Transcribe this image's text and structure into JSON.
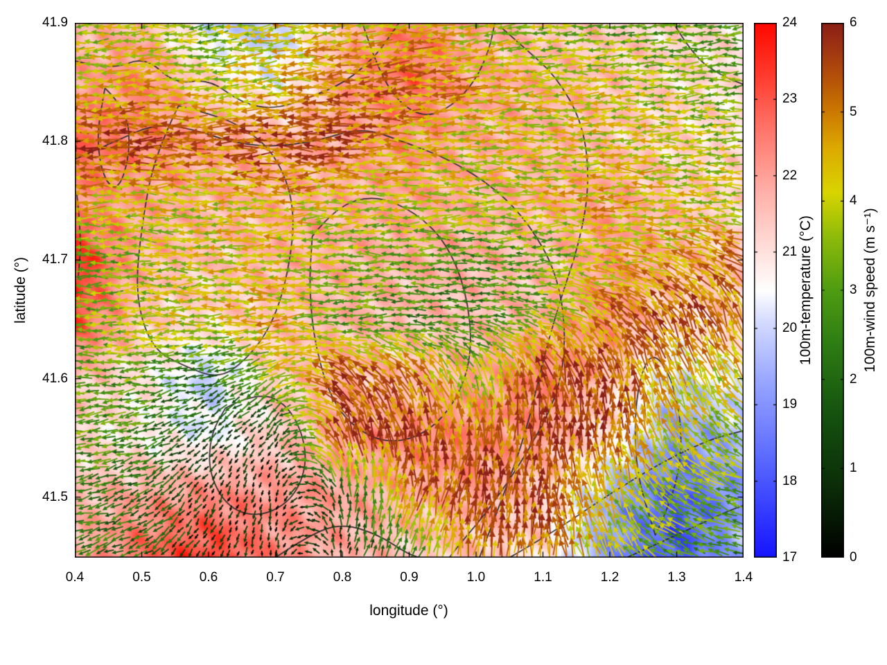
{
  "figure": {
    "xlabel": "longitude (°)",
    "ylabel": "latitude (°)",
    "xlim": [
      0.4,
      1.4
    ],
    "ylim": [
      41.449,
      41.9
    ],
    "x_ticks": [
      0.4,
      0.5,
      0.6,
      0.7,
      0.8,
      0.9,
      1.0,
      1.1,
      1.2,
      1.3,
      1.4
    ],
    "x_tick_labels": [
      "0.4",
      "0.5",
      "0.6",
      "0.7",
      "0.8",
      "0.9",
      "1.0",
      "1.1",
      "1.2",
      "1.3",
      "1.4"
    ],
    "y_ticks": [
      41.5,
      41.6,
      41.7,
      41.8,
      41.9
    ],
    "y_tick_labels": [
      "41.5",
      "41.6",
      "41.7",
      "41.8",
      "41.9"
    ]
  },
  "colorbars": [
    {
      "id": "temperature",
      "label": "100m-temperature (°C)",
      "min": 17,
      "max": 24,
      "ticks": [
        17,
        18,
        19,
        20,
        21,
        22,
        23,
        24
      ],
      "tick_labels": [
        "17",
        "18",
        "19",
        "20",
        "21",
        "22",
        "23",
        "24"
      ],
      "stops": [
        [
          17,
          "#1414ff"
        ],
        [
          18.3,
          "#5a6aff"
        ],
        [
          19.3,
          "#97a6ff"
        ],
        [
          20.1,
          "#d6dcff"
        ],
        [
          20.5,
          "#ffffff"
        ],
        [
          21.0,
          "#ffe2de"
        ],
        [
          21.8,
          "#ffb0a8"
        ],
        [
          22.6,
          "#ff766b"
        ],
        [
          23.4,
          "#ff3527"
        ],
        [
          24,
          "#ff0800"
        ]
      ]
    },
    {
      "id": "wind-speed",
      "label": "100m-wind speed (m s⁻¹)",
      "min": 0,
      "max": 6,
      "ticks": [
        0,
        1,
        2,
        3,
        4,
        5,
        6
      ],
      "tick_labels": [
        "0",
        "1",
        "2",
        "3",
        "4",
        "5",
        "6"
      ],
      "stops": [
        [
          0,
          "#000000"
        ],
        [
          0.8,
          "#0b2d08"
        ],
        [
          1.6,
          "#15520f"
        ],
        [
          2.4,
          "#2e7d14"
        ],
        [
          3.0,
          "#4f9c12"
        ],
        [
          3.6,
          "#8ebb0a"
        ],
        [
          4.1,
          "#d9d500"
        ],
        [
          4.6,
          "#ddaa00"
        ],
        [
          5.0,
          "#cc7a00"
        ],
        [
          5.4,
          "#b4500a"
        ],
        [
          5.8,
          "#9a2e14"
        ],
        [
          6,
          "#8b2016"
        ]
      ]
    }
  ],
  "chart_data": {
    "type": "heatmap",
    "subtype": "temperature-field-with-wind-quiver-and-contours",
    "title": "",
    "xlabel": "longitude (°)",
    "ylabel": "latitude (°)",
    "xlim": [
      0.4,
      1.4
    ],
    "ylim": [
      41.449,
      41.9
    ],
    "grid_lons": [
      0.4,
      0.5,
      0.6,
      0.7,
      0.8,
      0.9,
      1.0,
      1.1,
      1.2,
      1.3,
      1.4
    ],
    "grid_lats": [
      41.9,
      41.85,
      41.8,
      41.75,
      41.7,
      41.65,
      41.6,
      41.55,
      41.5,
      41.45
    ],
    "temperature_c": [
      [
        21.5,
        21.8,
        20.0,
        19.6,
        21.6,
        22.6,
        21.8,
        21.4,
        21.4,
        21.2,
        21.0
      ],
      [
        22.0,
        22.4,
        21.2,
        20.4,
        22.0,
        22.8,
        22.0,
        21.8,
        21.5,
        21.2,
        21.0
      ],
      [
        22.8,
        22.4,
        22.0,
        21.8,
        22.0,
        22.2,
        21.8,
        21.8,
        21.5,
        21.2,
        21.0
      ],
      [
        22.4,
        22.0,
        21.8,
        21.8,
        21.8,
        22.0,
        21.8,
        21.8,
        22.0,
        21.5,
        21.2
      ],
      [
        23.6,
        21.8,
        21.5,
        21.8,
        21.8,
        21.8,
        21.8,
        21.5,
        22.2,
        21.8,
        21.4
      ],
      [
        23.2,
        21.4,
        21.2,
        21.5,
        21.8,
        21.6,
        21.5,
        21.8,
        22.4,
        21.0,
        21.4
      ],
      [
        21.6,
        21.0,
        19.8,
        21.4,
        21.8,
        21.5,
        22.0,
        22.5,
        21.5,
        20.0,
        20.4
      ],
      [
        21.2,
        20.8,
        20.4,
        21.4,
        22.0,
        22.4,
        22.5,
        22.0,
        21.0,
        19.0,
        19.6
      ],
      [
        21.6,
        22.0,
        22.4,
        22.2,
        22.0,
        21.8,
        22.0,
        21.4,
        19.4,
        18.0,
        19.0
      ],
      [
        21.8,
        22.8,
        23.4,
        22.4,
        21.8,
        21.5,
        21.4,
        21.0,
        19.0,
        17.8,
        19.6
      ]
    ],
    "wind_speed_ms": [
      [
        3.5,
        4.0,
        3.0,
        4.5,
        4.0,
        4.5,
        4.0,
        3.5,
        3.0,
        3.0,
        3.0
      ],
      [
        4.0,
        4.5,
        4.0,
        4.0,
        5.0,
        5.0,
        4.5,
        4.0,
        4.0,
        3.5,
        3.0
      ],
      [
        5.5,
        5.5,
        5.0,
        5.5,
        5.5,
        4.5,
        4.0,
        4.0,
        4.0,
        4.0,
        3.5
      ],
      [
        4.5,
        4.0,
        4.0,
        4.5,
        4.0,
        4.0,
        4.0,
        4.0,
        4.5,
        4.0,
        4.0
      ],
      [
        3.0,
        3.5,
        4.0,
        4.0,
        3.5,
        3.0,
        2.5,
        3.0,
        4.0,
        4.5,
        5.0
      ],
      [
        3.0,
        4.0,
        4.0,
        4.5,
        3.0,
        2.5,
        2.5,
        3.5,
        5.0,
        5.5,
        5.0
      ],
      [
        3.0,
        3.0,
        2.0,
        3.5,
        5.5,
        5.0,
        3.5,
        5.5,
        5.5,
        4.5,
        4.0
      ],
      [
        3.0,
        2.5,
        1.0,
        0.8,
        5.5,
        5.5,
        5.0,
        5.5,
        5.5,
        4.0,
        3.5
      ],
      [
        2.5,
        2.0,
        0.8,
        0.5,
        1.5,
        5.0,
        5.5,
        5.5,
        4.0,
        3.5,
        3.0
      ],
      [
        2.5,
        2.0,
        1.0,
        0.5,
        1.0,
        2.5,
        5.0,
        5.0,
        4.0,
        3.0,
        2.5
      ]
    ],
    "wind_dir_deg": [
      [
        185,
        185,
        185,
        185,
        185,
        185,
        185,
        185,
        185,
        185,
        185
      ],
      [
        182,
        182,
        182,
        182,
        182,
        182,
        182,
        182,
        182,
        182,
        182
      ],
      [
        180,
        180,
        180,
        180,
        180,
        180,
        180,
        180,
        180,
        180,
        180
      ],
      [
        180,
        180,
        180,
        180,
        180,
        180,
        180,
        180,
        180,
        178,
        175
      ],
      [
        180,
        180,
        180,
        180,
        180,
        180,
        180,
        180,
        175,
        165,
        150
      ],
      [
        180,
        180,
        180,
        180,
        180,
        180,
        180,
        165,
        140,
        120,
        110
      ],
      [
        180,
        185,
        200,
        210,
        140,
        120,
        110,
        100,
        95,
        110,
        130
      ],
      [
        185,
        195,
        215,
        235,
        110,
        95,
        90,
        90,
        90,
        120,
        150
      ],
      [
        190,
        205,
        240,
        260,
        90,
        80,
        85,
        90,
        110,
        150,
        165
      ],
      [
        190,
        210,
        245,
        265,
        75,
        70,
        80,
        90,
        120,
        155,
        170
      ]
    ],
    "contour_color": "#2b2b2b",
    "contours_lonlat": [
      [
        [
          0.4,
          41.785
        ],
        [
          0.46,
          41.8
        ],
        [
          0.52,
          41.815
        ],
        [
          0.58,
          41.81
        ],
        [
          0.63,
          41.8
        ],
        [
          0.69,
          41.795
        ],
        [
          0.76,
          41.8
        ],
        [
          0.83,
          41.812
        ],
        [
          0.89,
          41.8
        ],
        [
          0.96,
          41.785
        ],
        [
          1.03,
          41.76
        ],
        [
          1.08,
          41.73
        ],
        [
          1.12,
          41.69
        ],
        [
          1.135,
          41.64
        ],
        [
          1.125,
          41.59
        ],
        [
          1.08,
          41.54
        ],
        [
          1.02,
          41.49
        ],
        [
          0.975,
          41.46
        ],
        [
          0.96,
          41.449
        ]
      ],
      [
        [
          0.555,
          41.83
        ],
        [
          0.52,
          41.79
        ],
        [
          0.5,
          41.73
        ],
        [
          0.49,
          41.67
        ],
        [
          0.515,
          41.625
        ],
        [
          0.565,
          41.61
        ],
        [
          0.615,
          41.6
        ],
        [
          0.655,
          41.615
        ],
        [
          0.695,
          41.645
        ],
        [
          0.72,
          41.69
        ],
        [
          0.73,
          41.745
        ],
        [
          0.7,
          41.79
        ],
        [
          0.645,
          41.815
        ],
        [
          0.59,
          41.825
        ],
        [
          0.555,
          41.83
        ]
      ],
      [
        [
          0.755,
          41.72
        ],
        [
          0.79,
          41.745
        ],
        [
          0.85,
          41.755
        ],
        [
          0.91,
          41.74
        ],
        [
          0.955,
          41.715
        ],
        [
          0.985,
          41.675
        ],
        [
          0.995,
          41.625
        ],
        [
          0.975,
          41.585
        ],
        [
          0.93,
          41.555
        ],
        [
          0.875,
          41.545
        ],
        [
          0.825,
          41.555
        ],
        [
          0.785,
          41.58
        ],
        [
          0.76,
          41.625
        ],
        [
          0.75,
          41.675
        ],
        [
          0.755,
          41.72
        ]
      ],
      [
        [
          1.005,
          41.449
        ],
        [
          1.04,
          41.5
        ],
        [
          1.075,
          41.555
        ],
        [
          1.1,
          41.615
        ],
        [
          1.125,
          41.665
        ],
        [
          1.155,
          41.715
        ],
        [
          1.17,
          41.765
        ],
        [
          1.16,
          41.815
        ],
        [
          1.12,
          41.855
        ],
        [
          1.07,
          41.88
        ],
        [
          1.04,
          41.895
        ]
      ],
      [
        [
          0.625,
          41.575
        ],
        [
          0.675,
          41.59
        ],
        [
          0.725,
          41.575
        ],
        [
          0.75,
          41.535
        ],
        [
          0.73,
          41.5
        ],
        [
          0.68,
          41.483
        ],
        [
          0.63,
          41.49
        ],
        [
          0.6,
          41.52
        ],
        [
          0.603,
          41.553
        ],
        [
          0.625,
          41.575
        ]
      ],
      [
        [
          0.445,
          41.845
        ],
        [
          0.478,
          41.827
        ],
        [
          0.483,
          41.79
        ],
        [
          0.465,
          41.758
        ],
        [
          0.443,
          41.768
        ],
        [
          0.432,
          41.803
        ],
        [
          0.445,
          41.845
        ]
      ],
      [
        [
          0.4,
          41.868
        ],
        [
          0.455,
          41.86
        ],
        [
          0.505,
          41.872
        ],
        [
          0.55,
          41.848
        ],
        [
          0.6,
          41.853
        ],
        [
          0.65,
          41.832
        ],
        [
          0.7,
          41.827
        ],
        [
          0.755,
          41.838
        ],
        [
          0.805,
          41.85
        ],
        [
          0.85,
          41.872
        ],
        [
          0.875,
          41.892
        ],
        [
          0.885,
          41.9
        ]
      ],
      [
        [
          0.83,
          41.9
        ],
        [
          0.852,
          41.862
        ],
        [
          0.885,
          41.832
        ],
        [
          0.925,
          41.82
        ],
        [
          0.965,
          41.83
        ],
        [
          1.0,
          41.852
        ],
        [
          1.02,
          41.878
        ],
        [
          1.028,
          41.9
        ]
      ],
      [
        [
          1.295,
          41.9
        ],
        [
          1.325,
          41.872
        ],
        [
          1.365,
          41.856
        ],
        [
          1.4,
          41.848
        ]
      ],
      [
        [
          1.268,
          41.468
        ],
        [
          1.298,
          41.503
        ],
        [
          1.31,
          41.553
        ],
        [
          1.292,
          41.603
        ],
        [
          1.26,
          41.625
        ],
        [
          1.238,
          41.585
        ],
        [
          1.238,
          41.523
        ],
        [
          1.268,
          41.468
        ]
      ],
      [
        [
          1.05,
          41.449
        ],
        [
          1.12,
          41.472
        ],
        [
          1.2,
          41.503
        ],
        [
          1.28,
          41.53
        ],
        [
          1.35,
          41.549
        ],
        [
          1.4,
          41.556
        ]
      ],
      [
        [
          1.225,
          41.449
        ],
        [
          1.3,
          41.468
        ],
        [
          1.375,
          41.488
        ],
        [
          1.4,
          41.493
        ]
      ],
      [
        [
          0.7,
          41.449
        ],
        [
          0.75,
          41.468
        ],
        [
          0.8,
          41.478
        ],
        [
          0.855,
          41.468
        ],
        [
          0.895,
          41.453
        ],
        [
          0.915,
          41.449
        ]
      ],
      [
        [
          0.403,
          41.755
        ],
        [
          0.41,
          41.72
        ],
        [
          0.405,
          41.685
        ]
      ]
    ]
  }
}
